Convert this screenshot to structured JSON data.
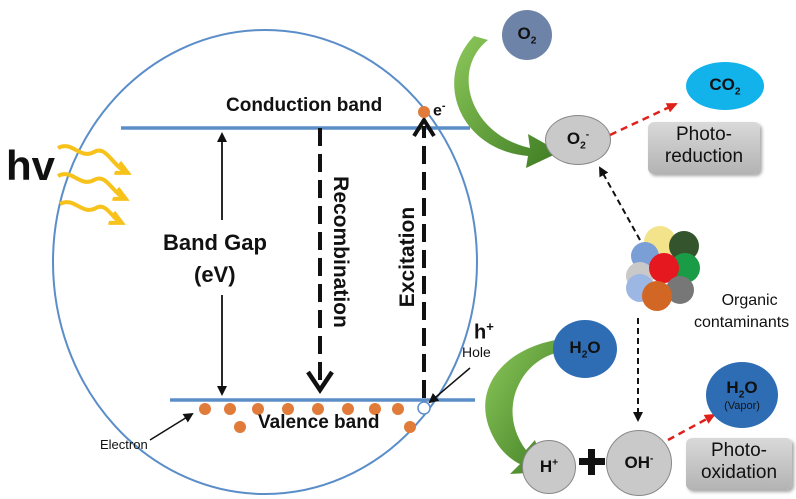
{
  "diagram": {
    "hv": "hv",
    "conduction_band": "Conduction band",
    "valence_band": "Valence band",
    "band_gap_line1": "Band Gap",
    "band_gap_line2": "(eV)",
    "recombination": "Recombination",
    "excitation": "Excitation",
    "electron_symbol": "e",
    "electron_charge": "-",
    "hole_symbol": "h",
    "hole_charge": "+",
    "hole_label": "Hole",
    "electron_label": "Electron",
    "o2_base": "O",
    "o2_sub": "2",
    "superoxide_base": "O",
    "superoxide_sub": "2",
    "superoxide_charge": "-",
    "co2_base": "CO",
    "co2_sub": "2",
    "photo_reduction_line1": "Photo-",
    "photo_reduction_line2": "reduction",
    "organic_line1": "Organic",
    "organic_line2": "contaminants",
    "h2o_base": "H",
    "h2o_sub": "2",
    "h2o_end": "O",
    "h2o_vapor_base": "H",
    "h2o_vapor_sub": "2",
    "h2o_vapor_end": "O",
    "vapor_label": "(Vapor)",
    "hplus_base": "H",
    "hplus_charge": "+",
    "plus_sign": "+",
    "oh_base": "OH",
    "oh_charge": "-",
    "photo_oxidation_line1": "Photo-",
    "photo_oxidation_line2": "oxidation"
  },
  "colors": {
    "band_line": "#5b8ec9",
    "particle": "#e07b39",
    "green_arrow": "#4a8a2c",
    "red_arrow": "#e0201b",
    "mol_grey": "#c9c9c9",
    "mol_blue": "#2e6db4",
    "mol_slate": "#6d84a8",
    "co2_cyan": "#12b2ea",
    "hv_yellow": "#f7c21b"
  }
}
